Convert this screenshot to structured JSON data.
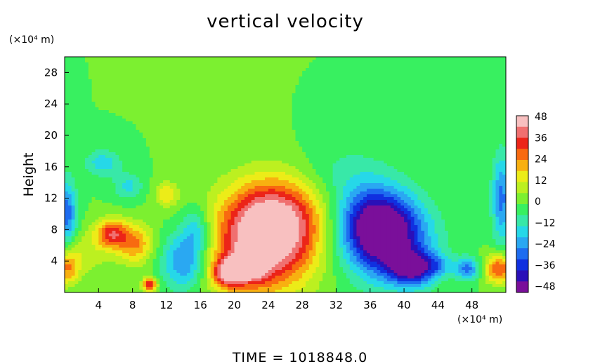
{
  "chart_data": {
    "type": "heatmap",
    "title": "vertical velocity",
    "ylabel": "Height",
    "x_unit": "(×10⁴ m)",
    "y_unit": "(×10⁴ m)",
    "footer": "TIME = 1018848.0",
    "xlim": [
      0,
      52
    ],
    "ylim": [
      0,
      30
    ],
    "x_ticks": [
      4,
      8,
      12,
      16,
      20,
      24,
      28,
      32,
      36,
      40,
      44,
      48
    ],
    "y_ticks": [
      4,
      8,
      12,
      16,
      20,
      24,
      28
    ],
    "x_tick_labels": [
      "4",
      "8",
      "12",
      "16",
      "20",
      "24",
      "28",
      "32",
      "36",
      "40",
      "44",
      "48"
    ],
    "y_tick_labels": [
      "4",
      "8",
      "12",
      "16",
      "20",
      "24",
      "28"
    ],
    "colorbar": {
      "range": [
        -48,
        48
      ],
      "ticks": [
        "48",
        "36",
        "24",
        "12",
        "0",
        "−12",
        "−24",
        "−36",
        "−48"
      ]
    },
    "features": [
      {
        "label": "updraft",
        "x": 23.5,
        "y": 6.5,
        "sx": 4.2,
        "sy": 4.5,
        "value": 48
      },
      {
        "label": "updraft",
        "x": 25.5,
        "y": 10,
        "sx": 3.8,
        "sy": 3.5,
        "value": 22
      },
      {
        "label": "updraft",
        "x": 19.2,
        "y": 2.5,
        "sx": 1.3,
        "sy": 1.3,
        "value": 36
      },
      {
        "label": "updraft",
        "x": 22.0,
        "y": 3.5,
        "sx": 1.3,
        "sy": 1.5,
        "value": 30
      },
      {
        "label": "updraft",
        "x": 5.5,
        "y": 7.5,
        "sx": 1.3,
        "sy": 1.3,
        "value": 32
      },
      {
        "label": "updraft",
        "x": 8.3,
        "y": 6.2,
        "sx": 1.5,
        "sy": 1.8,
        "value": 24
      },
      {
        "label": "updraft",
        "x": 10.0,
        "y": 1.0,
        "sx": 0.6,
        "sy": 0.6,
        "value": 36
      },
      {
        "label": "updraft",
        "x": 51.2,
        "y": 3.0,
        "sx": 1.2,
        "sy": 1.3,
        "value": 32
      },
      {
        "label": "updraft",
        "x": 0.3,
        "y": 3.0,
        "sx": 1.0,
        "sy": 1.5,
        "value": 22
      },
      {
        "label": "updraft",
        "x": 12.0,
        "y": 12.5,
        "sx": 1.0,
        "sy": 1.2,
        "value": 16
      },
      {
        "label": "updraft",
        "x": 2.0,
        "y": 5.0,
        "sx": 2.5,
        "sy": 2.0,
        "value": 10
      },
      {
        "label": "downdraft",
        "x": 38.0,
        "y": 6.5,
        "sx": 3.5,
        "sy": 3.5,
        "value": -44
      },
      {
        "label": "downdraft",
        "x": 36.5,
        "y": 9.5,
        "sx": 3.0,
        "sy": 3.0,
        "value": -28
      },
      {
        "label": "downdraft",
        "x": 41.0,
        "y": 3.0,
        "sx": 1.8,
        "sy": 1.5,
        "value": -36
      },
      {
        "label": "downdraft",
        "x": 14.0,
        "y": 4.0,
        "sx": 1.8,
        "sy": 2.5,
        "value": -26
      },
      {
        "label": "downdraft",
        "x": 15.5,
        "y": 8.0,
        "sx": 1.2,
        "sy": 2.0,
        "value": -18
      },
      {
        "label": "downdraft",
        "x": 0.3,
        "y": 10.0,
        "sx": 0.8,
        "sy": 3.0,
        "value": -28
      },
      {
        "label": "downdraft",
        "x": 51.5,
        "y": 12.0,
        "sx": 0.8,
        "sy": 4.0,
        "value": -26
      },
      {
        "label": "downdraft",
        "x": 47.5,
        "y": 3.0,
        "sx": 1.0,
        "sy": 1.0,
        "value": -26
      },
      {
        "label": "downdraft",
        "x": 44.0,
        "y": 3.5,
        "sx": 1.2,
        "sy": 1.0,
        "value": -14
      },
      {
        "label": "downdraft",
        "x": 4.5,
        "y": 16.5,
        "sx": 1.5,
        "sy": 1.2,
        "value": -16
      },
      {
        "label": "downdraft",
        "x": 7.5,
        "y": 13.5,
        "sx": 1.2,
        "sy": 1.2,
        "value": -14
      },
      {
        "label": "downdraft",
        "x": 33.0,
        "y": 15.0,
        "sx": 4.0,
        "sy": 3.0,
        "value": -8
      }
    ]
  }
}
